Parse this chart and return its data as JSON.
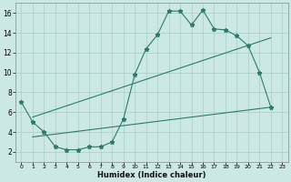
{
  "xlabel": "Humidex (Indice chaleur)",
  "bg_color": "#cce8e4",
  "grid_color": "#aaccca",
  "line_color": "#2d7a6a",
  "xlim": [
    -0.5,
    23.5
  ],
  "ylim": [
    1,
    17
  ],
  "xticks": [
    0,
    1,
    2,
    3,
    4,
    5,
    6,
    7,
    8,
    9,
    10,
    11,
    12,
    13,
    14,
    15,
    16,
    17,
    18,
    19,
    20,
    21,
    22,
    23
  ],
  "yticks": [
    2,
    4,
    6,
    8,
    10,
    12,
    14,
    16
  ],
  "curve1_x": [
    0,
    1,
    2,
    3,
    4,
    5,
    6,
    7,
    8,
    9,
    10,
    11,
    12,
    13,
    14,
    15,
    16,
    17,
    18,
    19,
    20,
    21,
    22
  ],
  "curve1_y": [
    7.0,
    5.0,
    4.0,
    2.5,
    2.2,
    2.2,
    2.5,
    2.5,
    3.0,
    5.3,
    9.8,
    12.4,
    13.8,
    16.2,
    16.2,
    14.8,
    16.3,
    14.4,
    14.3,
    13.7,
    12.7,
    10.0,
    6.5
  ],
  "curve2_x": [
    1,
    22
  ],
  "curve2_y": [
    5.5,
    13.5
  ],
  "curve3_x": [
    1,
    22
  ],
  "curve3_y": [
    3.5,
    6.5
  ]
}
